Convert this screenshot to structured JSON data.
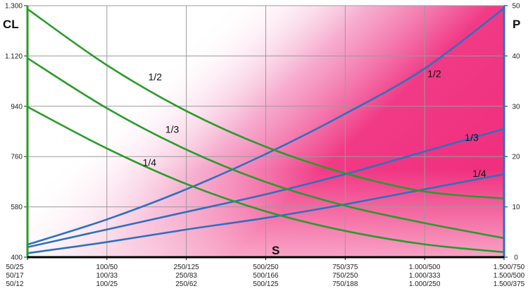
{
  "chart_data": {
    "type": "line",
    "left_axis": {
      "title": "CL",
      "ticks": [
        400,
        580,
        760,
        940,
        1120,
        1300
      ],
      "tick_labels": [
        "400",
        "580",
        "760",
        "940",
        "1.120",
        "1.300"
      ],
      "range": [
        400,
        1300
      ],
      "color": "#2b9a2b"
    },
    "right_axis": {
      "title": "P",
      "ticks": [
        0,
        10,
        20,
        30,
        40,
        50
      ],
      "tick_labels": [
        "0",
        "10",
        "20",
        "30",
        "40",
        "50"
      ],
      "range": [
        0,
        50
      ],
      "color": "#2f6fc0"
    },
    "x_axis": {
      "title": "S",
      "range": [
        0,
        6
      ],
      "categories": [
        [
          "50/25",
          "50/17",
          "50/12"
        ],
        [
          "100/50",
          "100/33",
          "100/25"
        ],
        [
          "250/125",
          "250/83",
          "250/62"
        ],
        [
          "500/250",
          "500/166",
          "500/125"
        ],
        [
          "750/375",
          "750/250",
          "750/188"
        ],
        [
          "1.000/500",
          "1.000/333",
          "1.000/250"
        ],
        [
          "1.500/750",
          "1.500/500",
          "1.500/375"
        ]
      ]
    },
    "grid": true,
    "background_gradient": "white-to-magenta",
    "cl_series": [
      {
        "name": "1/2",
        "axis": "left",
        "color": "#2b9a2b",
        "points": [
          [
            0,
            1288
          ],
          [
            1,
            1087
          ],
          [
            2,
            923
          ],
          [
            3,
            795
          ],
          [
            4,
            700
          ],
          [
            5,
            635
          ],
          [
            6,
            610
          ]
        ]
      },
      {
        "name": "1/3",
        "axis": "left",
        "color": "#2b9a2b",
        "points": [
          [
            0,
            1112
          ],
          [
            1,
            933
          ],
          [
            2,
            785
          ],
          [
            3,
            669
          ],
          [
            4,
            584
          ],
          [
            5,
            522
          ],
          [
            6,
            468
          ]
        ]
      },
      {
        "name": "1/4",
        "axis": "left",
        "color": "#2b9a2b",
        "points": [
          [
            0,
            938
          ],
          [
            1,
            789
          ],
          [
            2,
            662
          ],
          [
            3,
            564
          ],
          [
            4,
            494
          ],
          [
            5,
            446
          ],
          [
            6,
            418
          ]
        ]
      }
    ],
    "p_series": [
      {
        "name": "1/2",
        "axis": "right",
        "color": "#2f6fc0",
        "points": [
          [
            0,
            2.5
          ],
          [
            1,
            7.5
          ],
          [
            2,
            13.5
          ],
          [
            3,
            20.5
          ],
          [
            4,
            28.5
          ],
          [
            5,
            37.5
          ],
          [
            6,
            49.5
          ]
        ]
      },
      {
        "name": "1/3",
        "axis": "right",
        "color": "#2f6fc0",
        "points": [
          [
            0,
            2.0
          ],
          [
            1,
            5.5
          ],
          [
            2,
            9.0
          ],
          [
            3,
            12.5
          ],
          [
            4,
            16.5
          ],
          [
            5,
            21.0
          ],
          [
            6,
            25.5
          ]
        ]
      },
      {
        "name": "1/4",
        "axis": "right",
        "color": "#2f6fc0",
        "points": [
          [
            0,
            0.8
          ],
          [
            1,
            3.0
          ],
          [
            2,
            5.5
          ],
          [
            3,
            7.8
          ],
          [
            4,
            10.5
          ],
          [
            5,
            13.5
          ],
          [
            6,
            16.5
          ]
        ]
      }
    ]
  }
}
